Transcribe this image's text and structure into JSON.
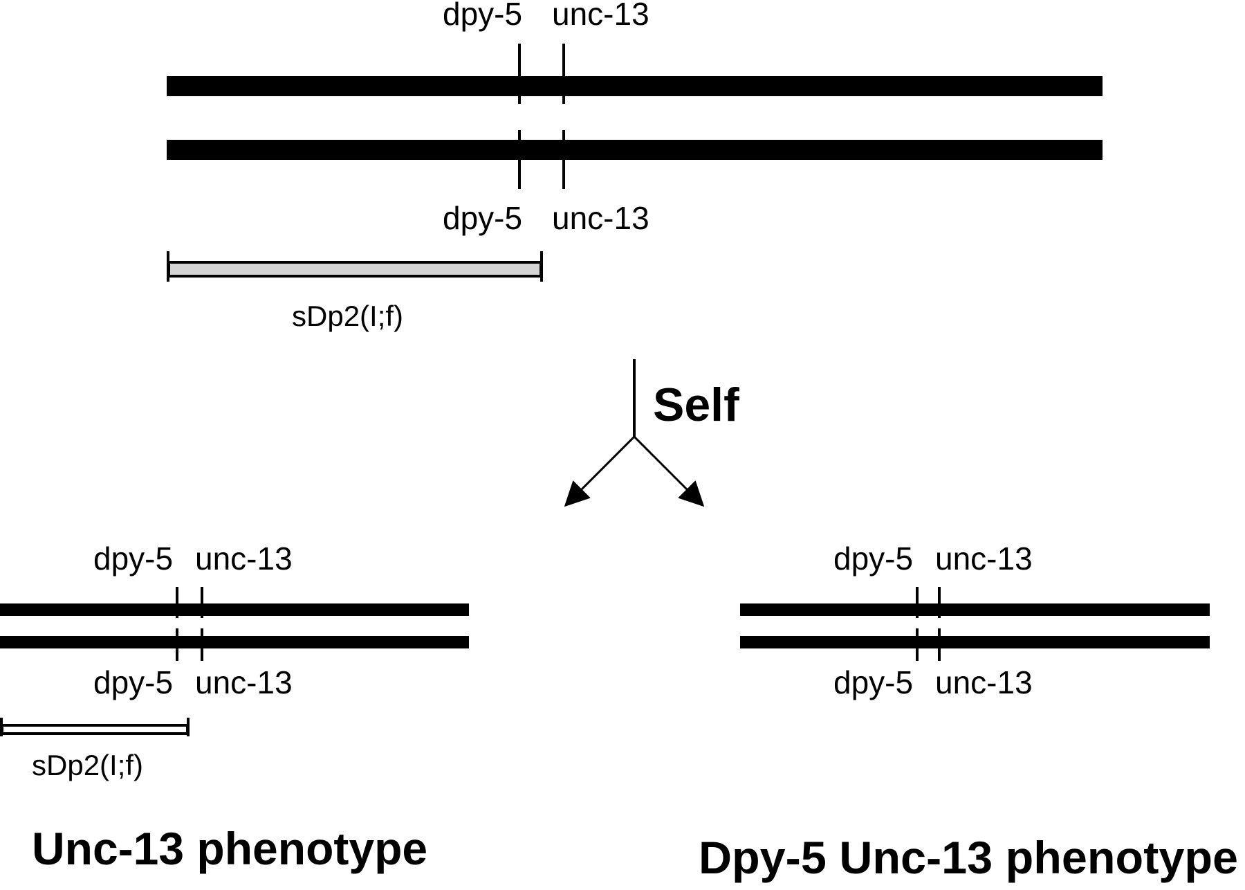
{
  "colors": {
    "ink": "#000000",
    "duplication_fill": "#d4d4d4",
    "background": "#ffffff"
  },
  "parent": {
    "top_labels": {
      "dpy5": "dpy-5",
      "unc13": "unc-13"
    },
    "bottom_labels": {
      "dpy5": "dpy-5",
      "unc13": "unc-13"
    },
    "duplication_label": "sDp2(I;f)"
  },
  "cross": {
    "label": "Self"
  },
  "progeny_left": {
    "top_labels": {
      "dpy5": "dpy-5",
      "unc13": "unc-13"
    },
    "bottom_labels": {
      "dpy5": "dpy-5",
      "unc13": "unc-13"
    },
    "duplication_label": "sDp2(I;f)",
    "phenotype": "Unc-13 phenotype"
  },
  "progeny_right": {
    "top_labels": {
      "dpy5": "dpy-5",
      "unc13": "unc-13"
    },
    "bottom_labels": {
      "dpy5": "dpy-5",
      "unc13": "unc-13"
    },
    "phenotype": "Dpy-5 Unc-13 phenotype"
  }
}
